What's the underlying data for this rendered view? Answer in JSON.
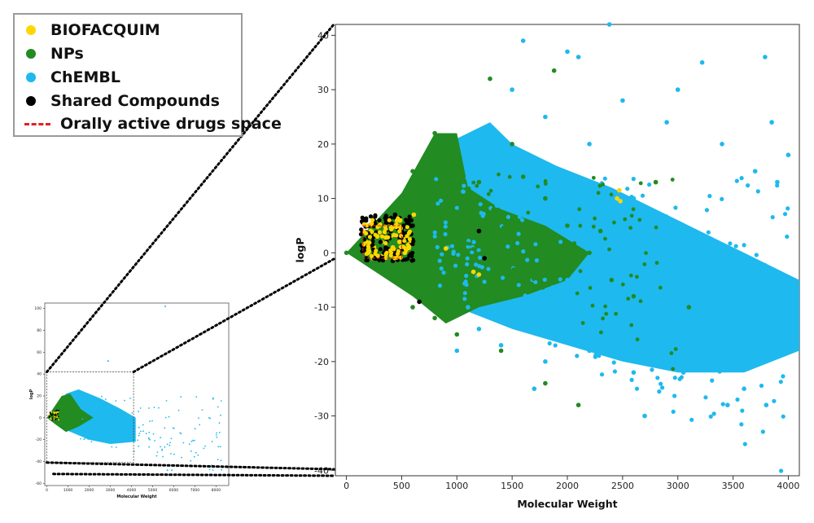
{
  "chart_data": [
    {
      "type": "scatter",
      "panel": "main-zoomed",
      "xlabel": "Molecular Weight",
      "ylabel": "logP",
      "xlim": [
        -100,
        4100
      ],
      "ylim": [
        -41,
        42
      ],
      "xticks": [
        0,
        500,
        1000,
        1500,
        2000,
        2500,
        3000,
        3500,
        4000
      ],
      "yticks": [
        -40,
        -30,
        -20,
        -10,
        0,
        10,
        20,
        30,
        40
      ],
      "grid": false,
      "series": [
        {
          "name": "BIOFACQUIM",
          "color": "#FFD700",
          "points": [
            [
              180,
              2
            ],
            [
              220,
              4
            ],
            [
              250,
              1
            ],
            [
              280,
              3
            ],
            [
              300,
              5
            ],
            [
              320,
              2
            ],
            [
              350,
              4
            ],
            [
              380,
              6
            ],
            [
              400,
              3
            ],
            [
              420,
              1
            ],
            [
              450,
              5
            ],
            [
              480,
              2
            ],
            [
              500,
              4
            ],
            [
              520,
              3
            ],
            [
              550,
              6
            ],
            [
              580,
              2
            ],
            [
              610,
              7
            ],
            [
              200,
              0
            ],
            [
              240,
              -1
            ],
            [
              330,
              -0.5
            ],
            [
              430,
              0.5
            ],
            [
              470,
              -0.3
            ],
            [
              530,
              0
            ],
            [
              900,
              0.8
            ],
            [
              1150,
              -3.5
            ],
            [
              1200,
              -4
            ],
            [
              2450,
              10
            ],
            [
              2470,
              11.5
            ],
            [
              2480,
              9.5
            ],
            [
              2800,
              13
            ]
          ]
        },
        {
          "name": "NPs",
          "color": "#228B22",
          "points": [
            [
              0,
              0
            ],
            [
              200,
              3
            ],
            [
              400,
              8
            ],
            [
              600,
              15
            ],
            [
              800,
              22
            ],
            [
              900,
              20
            ],
            [
              1000,
              15
            ],
            [
              1200,
              13
            ],
            [
              1300,
              32
            ],
            [
              1500,
              20
            ],
            [
              1600,
              14
            ],
            [
              1800,
              10
            ],
            [
              2000,
              5
            ],
            [
              2200,
              0
            ],
            [
              2400,
              -5
            ],
            [
              2600,
              -8
            ],
            [
              1000,
              -15
            ],
            [
              800,
              -12
            ],
            [
              600,
              -10
            ],
            [
              1400,
              -18
            ],
            [
              1800,
              -24
            ],
            [
              2100,
              -28
            ],
            [
              2800,
              13
            ],
            [
              1880,
              33.5
            ],
            [
              2300,
              4
            ],
            [
              3100,
              -10
            ]
          ]
        },
        {
          "name": "ChEMBL",
          "color": "#1EB9EE",
          "points": [
            [
              1600,
              39
            ],
            [
              2380,
              42
            ],
            [
              3220,
              35
            ],
            [
              3790,
              36
            ],
            [
              3850,
              24
            ],
            [
              3000,
              30
            ],
            [
              2000,
              37
            ],
            [
              2100,
              36
            ],
            [
              2500,
              28
            ],
            [
              3400,
              20
            ],
            [
              4000,
              18
            ],
            [
              3700,
              15
            ],
            [
              3900,
              13
            ],
            [
              2900,
              24
            ],
            [
              1500,
              30
            ],
            [
              1800,
              25
            ],
            [
              2200,
              20
            ],
            [
              2600,
              10
            ],
            [
              3000,
              5
            ],
            [
              3300,
              -5
            ],
            [
              3500,
              -10
            ],
            [
              3800,
              -15
            ],
            [
              4050,
              -13
            ],
            [
              3200,
              -20
            ],
            [
              3600,
              -25
            ],
            [
              3800,
              -28
            ],
            [
              2600,
              -22
            ],
            [
              2200,
              -18
            ],
            [
              1800,
              -20
            ],
            [
              1400,
              -17
            ],
            [
              2700,
              -30
            ],
            [
              1700,
              -25
            ],
            [
              1200,
              -14
            ],
            [
              1000,
              -18
            ],
            [
              3050,
              -22
            ],
            [
              3450,
              -28
            ],
            [
              1100,
              -10
            ],
            [
              2000,
              -5
            ],
            [
              2800,
              -12
            ],
            [
              3300,
              -15
            ]
          ]
        },
        {
          "name": "Shared Compounds",
          "color": "#000000",
          "points": [
            [
              150,
              1
            ],
            [
              200,
              3
            ],
            [
              260,
              5
            ],
            [
              310,
              2
            ],
            [
              360,
              6
            ],
            [
              400,
              4
            ],
            [
              440,
              7
            ],
            [
              480,
              3
            ],
            [
              520,
              2
            ],
            [
              560,
              6
            ],
            [
              600,
              5
            ],
            [
              250,
              -1
            ],
            [
              340,
              0
            ],
            [
              420,
              -1.5
            ],
            [
              480,
              -0.5
            ],
            [
              1200,
              4
            ],
            [
              1250,
              -1
            ],
            [
              660,
              -9
            ]
          ]
        }
      ],
      "annotations": [
        {
          "type": "rect",
          "label": "Orally active drugs space",
          "color": "#e02020",
          "style": "dashed",
          "x": [
            150,
            500
          ],
          "y": [
            -1,
            5
          ]
        }
      ]
    },
    {
      "type": "scatter",
      "panel": "inset-overview",
      "xlabel": "Molecular Weight",
      "ylabel": "logP",
      "xlim": [
        -100,
        8600
      ],
      "ylim": [
        -62,
        105
      ],
      "xticks": [
        0,
        1000,
        2000,
        3000,
        4000,
        5000,
        6000,
        7000,
        8000
      ],
      "yticks": [
        -60,
        -40,
        -20,
        0,
        20,
        40,
        60,
        80,
        100
      ],
      "grid": false,
      "zoom_box": {
        "x": [
          0,
          4100
        ],
        "y": [
          -41,
          42
        ]
      }
    }
  ],
  "legend": {
    "position": "top-left",
    "items": [
      {
        "label": "BIOFACQUIM",
        "color": "#FFD700",
        "marker": "dot"
      },
      {
        "label": "NPs",
        "color": "#228B22",
        "marker": "dot"
      },
      {
        "label": "ChEMBL",
        "color": "#1EB9EE",
        "marker": "dot"
      },
      {
        "label": "Shared Compounds",
        "color": "#000000",
        "marker": "dot"
      },
      {
        "label": "Orally active drugs space",
        "color": "#e02020",
        "marker": "dashed-line"
      }
    ]
  }
}
